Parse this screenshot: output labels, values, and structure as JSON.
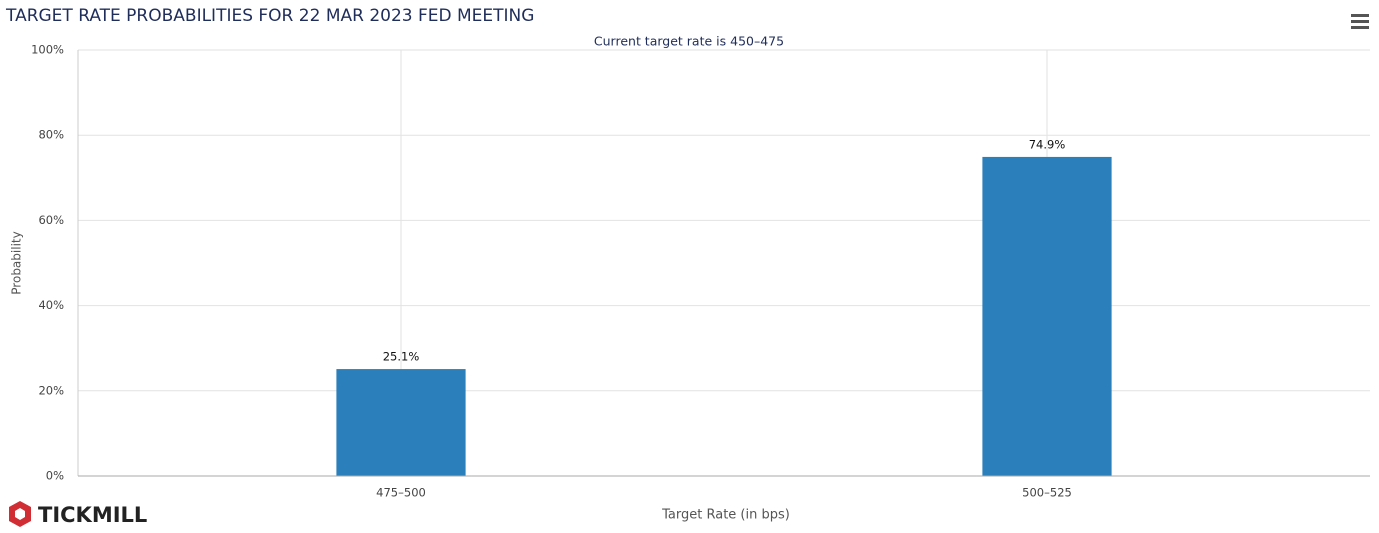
{
  "chart_data": {
    "type": "bar",
    "title": "TARGET RATE PROBABILITIES FOR 22 MAR 2023 FED MEETING",
    "subtitle": "Current target rate is 450–475",
    "x_label": "Target Rate (in bps)",
    "y_label": "Probability",
    "categories": [
      "475–500",
      "500–525"
    ],
    "values": [
      25.1,
      74.9
    ],
    "value_labels": [
      "25.1%",
      "74.9%"
    ],
    "color": "#2b7fba",
    "ylim": [
      0,
      100
    ],
    "yticks": [
      {
        "value": 0,
        "label": "0%"
      },
      {
        "value": 20,
        "label": "20%"
      },
      {
        "value": 40,
        "label": "40%"
      },
      {
        "value": 60,
        "label": "60%"
      },
      {
        "value": 80,
        "label": "80%"
      },
      {
        "value": 100,
        "label": "100%"
      }
    ],
    "grid": true
  },
  "brand": "TICKMILL"
}
